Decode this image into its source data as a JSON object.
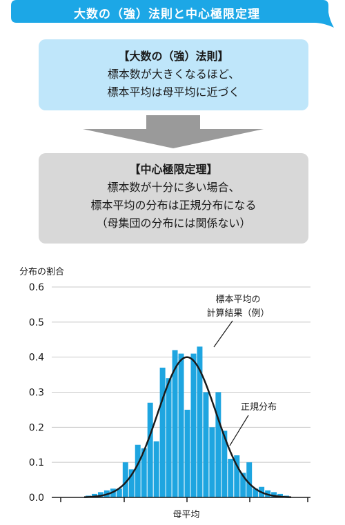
{
  "banner": {
    "title": "大数の（強）法則と中心極限定理"
  },
  "law_box": {
    "heading": "【大数の（強）法則】",
    "lines": [
      "標本数が大きくなるほど、",
      "標本平均は母平均に近づく"
    ]
  },
  "clt_box": {
    "heading": "【中心極限定理】",
    "lines": [
      "標本数が十分に多い場合、",
      "標本平均の分布は正規分布になる",
      "（母集団の分布には関係ない）"
    ]
  },
  "colors": {
    "banner": "#1ca7e6",
    "law_box": "#bfe6fa",
    "clt_box": "#d8d8d8",
    "arrow": "#9a9a9a",
    "bar": "#1ea5e0",
    "curve": "#1a1a1a"
  },
  "chart_data": {
    "type": "bar",
    "ylabel": "分布の割合",
    "xlabel": "母平均",
    "ylim": [
      0,
      0.6
    ],
    "yticks": [
      "0.0",
      "0.1",
      "0.2",
      "0.3",
      "0.4",
      "0.5",
      "0.6"
    ],
    "grid": true,
    "series": [
      {
        "name": "標本平均の計算結果（例）",
        "kind": "histogram",
        "values": [
          0.005,
          0.01,
          0.015,
          0.02,
          0.025,
          0.025,
          0.1,
          0.08,
          0.15,
          0.14,
          0.27,
          0.16,
          0.37,
          0.34,
          0.42,
          0.41,
          0.25,
          0.41,
          0.43,
          0.3,
          0.2,
          0.3,
          0.19,
          0.11,
          0.12,
          0.07,
          0.1,
          0.025,
          0.03,
          0.02,
          0.015,
          0.01,
          0.005
        ]
      },
      {
        "name": "正規分布",
        "kind": "normal-curve",
        "peak": 0.4
      }
    ],
    "annotations": [
      {
        "text_lines": [
          "標本平均の",
          "計算結果（例）"
        ],
        "target": "histogram"
      },
      {
        "text_lines": [
          "正規分布"
        ],
        "target": "curve"
      }
    ]
  }
}
